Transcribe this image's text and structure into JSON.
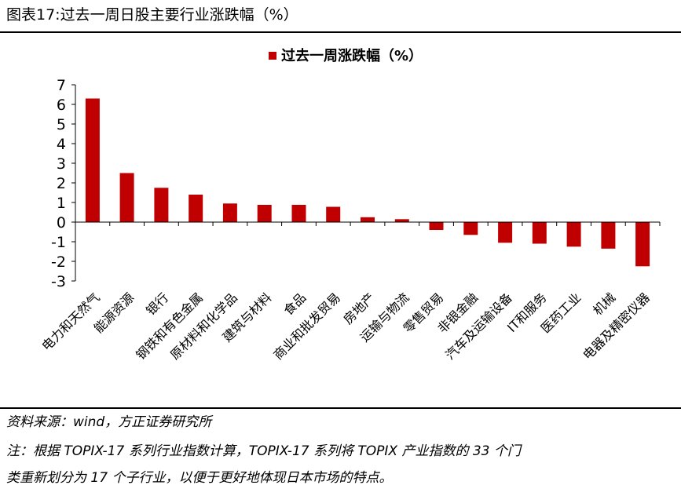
{
  "figure": {
    "title": "图表17:过去一周日股主要行业涨跌幅（%）",
    "source": "资料来源：wind，方正证券研究所",
    "note_line1": "注：根据 TOPIX-17 系列行业指数计算，TOPIX-17 系列将 TOPIX 产业指数的 33 个门",
    "note_line2": "类重新划分为 17 个子行业，以便于更好地体现日本市场的特点。"
  },
  "colors": {
    "bar": "#C00000",
    "axis": "#000000"
  },
  "chart_data": {
    "type": "bar",
    "categories": [
      "电力和天然气",
      "能源资源",
      "银行",
      "钢铁和有色金属",
      "原材料和化学品",
      "建筑与材料",
      "食品",
      "商业和批发贸易",
      "房地产",
      "运输与物流",
      "零售贸易",
      "非银金融",
      "汽车及运输设备",
      "IT和服务",
      "医药工业",
      "机械",
      "电器及精密仪器"
    ],
    "series": [
      {
        "name": "过去一周涨跌幅（%）",
        "values": [
          6.3,
          2.5,
          1.75,
          1.4,
          0.95,
          0.88,
          0.88,
          0.78,
          0.25,
          0.15,
          -0.4,
          -0.65,
          -1.05,
          -1.1,
          -1.25,
          -1.35,
          -2.25
        ]
      }
    ],
    "ylim": [
      -3,
      7
    ],
    "yticks": [
      "7",
      "6",
      "5",
      "4",
      "3",
      "2",
      "1",
      "0",
      "-1",
      "-2",
      "-3"
    ],
    "legend_position": "top-center",
    "grid": false
  }
}
